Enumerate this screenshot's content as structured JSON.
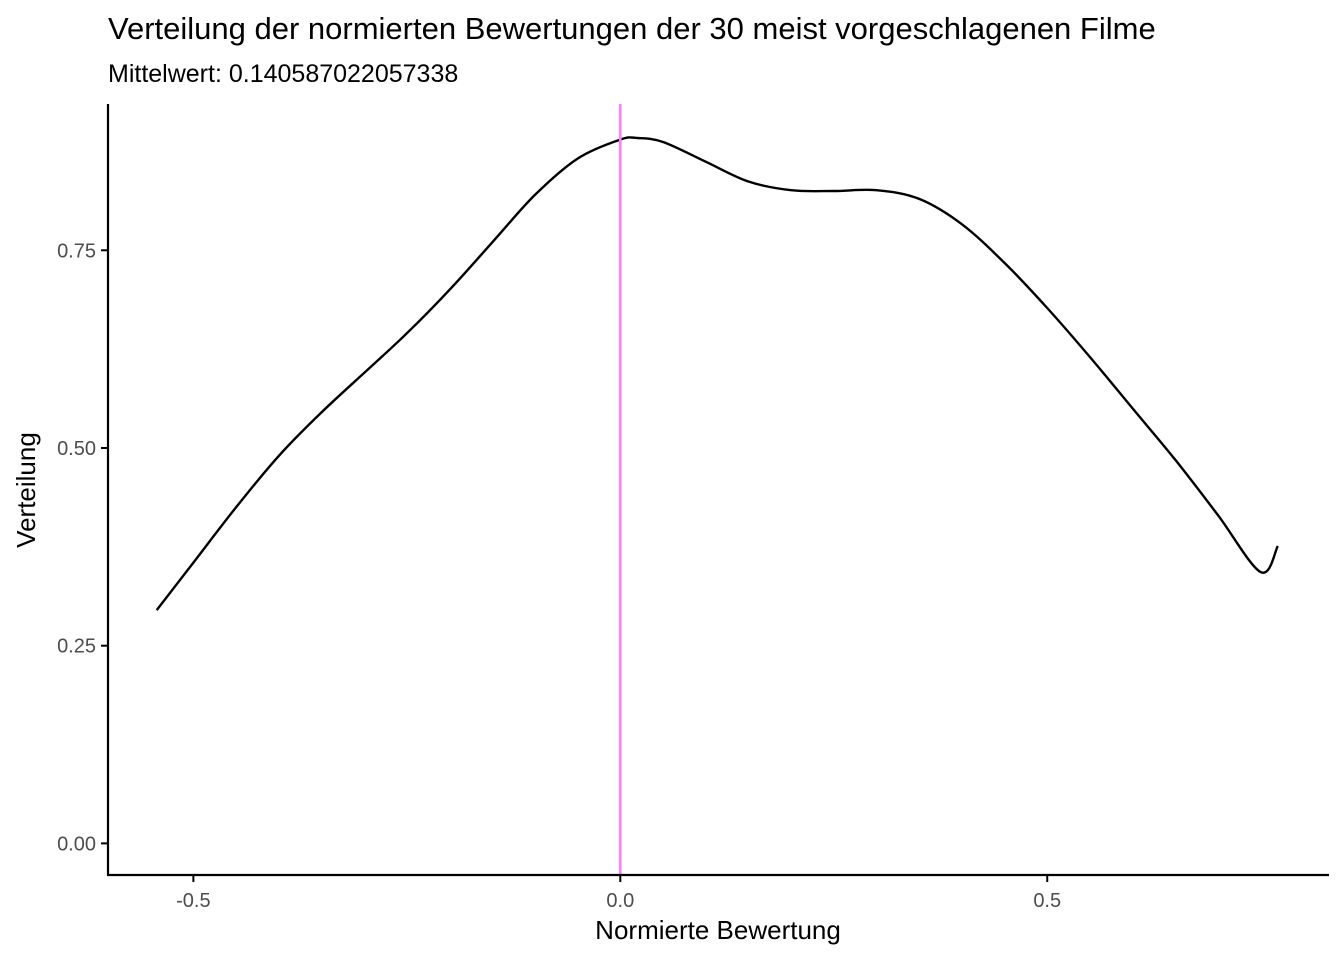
{
  "chart_data": {
    "type": "line",
    "title": "Verteilung der normierten Bewertungen der 30 meist vorgeschlagenen Filme",
    "subtitle": "Mittelwert:  0.140587022057338",
    "xlabel": "Normierte Bewertung",
    "ylabel": "Verteilung",
    "xlim": [
      -0.6,
      0.83
    ],
    "ylim": [
      -0.04,
      0.935
    ],
    "x_ticks": [
      -0.5,
      0.0,
      0.5
    ],
    "x_tick_labels": [
      "-0.5",
      "0.0",
      "0.5"
    ],
    "y_ticks": [
      0.0,
      0.25,
      0.5,
      0.75
    ],
    "y_tick_labels": [
      "0.00",
      "0.25",
      "0.50",
      "0.75"
    ],
    "grid": false,
    "legend": "none",
    "vline": {
      "x": 0.0,
      "color": "#ff80ff"
    },
    "series": [
      {
        "color": "#000000",
        "x": [
          -0.543,
          -0.5,
          -0.45,
          -0.4,
          -0.35,
          -0.3,
          -0.25,
          -0.2,
          -0.15,
          -0.1,
          -0.05,
          0.0,
          0.02,
          0.05,
          0.1,
          0.15,
          0.2,
          0.25,
          0.3,
          0.35,
          0.4,
          0.45,
          0.5,
          0.55,
          0.6,
          0.65,
          0.7,
          0.75,
          0.77
        ],
        "y": [
          0.295,
          0.355,
          0.425,
          0.49,
          0.545,
          0.595,
          0.645,
          0.7,
          0.76,
          0.82,
          0.866,
          0.89,
          0.892,
          0.887,
          0.862,
          0.837,
          0.826,
          0.825,
          0.826,
          0.815,
          0.783,
          0.734,
          0.677,
          0.615,
          0.55,
          0.485,
          0.415,
          0.343,
          0.376
        ]
      }
    ]
  }
}
